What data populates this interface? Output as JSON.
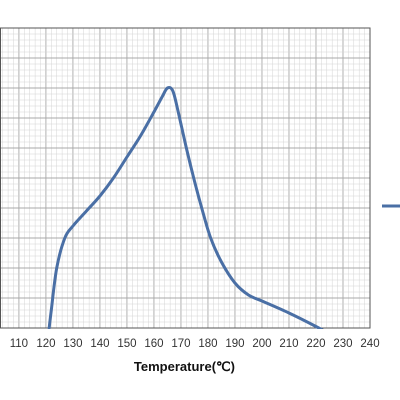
{
  "chart_data": {
    "type": "line",
    "xlabel": "Temperature(℃)",
    "ylabel": "",
    "title": "",
    "x_ticks": [
      "110",
      "120",
      "130",
      "140",
      "150",
      "160",
      "170",
      "180",
      "190",
      "200",
      "210",
      "220",
      "230",
      "240"
    ],
    "xlim": [
      103,
      240
    ],
    "ylim": [
      0,
      100
    ],
    "grid": true,
    "legend": "right",
    "series": [
      {
        "color": "#4a6fa5",
        "x": [
          121.2,
          122,
          124,
          127,
          130,
          135,
          140,
          145,
          150,
          155,
          160,
          163,
          165,
          167,
          169,
          172,
          175,
          178,
          181,
          185,
          190,
          195,
          200,
          210,
          220,
          227
        ],
        "y": [
          0,
          6,
          20,
          30,
          34,
          39,
          44,
          50,
          57,
          64,
          72,
          77,
          80,
          79,
          72,
          60,
          49,
          39,
          30,
          22,
          15,
          11,
          9,
          5,
          0.5,
          -3
        ]
      }
    ]
  },
  "colors": {
    "grid_minor": "#d4d4d4",
    "grid_major": "#a8a8a8",
    "line": "#4a6fa5",
    "frame": "#555555"
  }
}
